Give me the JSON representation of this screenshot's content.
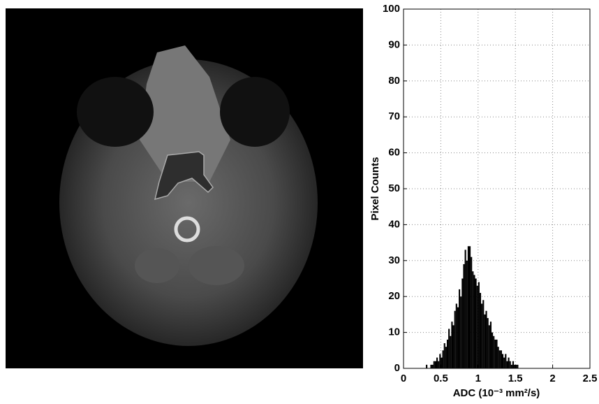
{
  "chart_data": {
    "type": "histogram",
    "xlabel": "ADC (10⁻³ mm²/s)",
    "ylabel": "Pixel Counts",
    "bins": [
      0.3,
      0.32,
      0.34,
      0.36,
      0.38,
      0.4,
      0.42,
      0.44,
      0.46,
      0.48,
      0.5,
      0.52,
      0.54,
      0.56,
      0.58,
      0.6,
      0.62,
      0.64,
      0.66,
      0.68,
      0.7,
      0.72,
      0.74,
      0.76,
      0.78,
      0.8,
      0.82,
      0.84,
      0.86,
      0.88,
      0.9,
      0.92,
      0.94,
      0.96,
      0.98,
      1.0,
      1.02,
      1.04,
      1.06,
      1.08,
      1.1,
      1.12,
      1.14,
      1.16,
      1.18,
      1.2,
      1.22,
      1.24,
      1.26,
      1.28,
      1.3,
      1.32,
      1.34,
      1.36,
      1.38,
      1.4,
      1.42,
      1.44,
      1.46,
      1.48,
      1.5,
      1.52,
      1.54
    ],
    "values": [
      1,
      0,
      0,
      1,
      1,
      2,
      2,
      3,
      2,
      4,
      3,
      5,
      7,
      6,
      8,
      11,
      9,
      13,
      12,
      16,
      18,
      17,
      22,
      20,
      25,
      29,
      33,
      30,
      34,
      34,
      31,
      27,
      26,
      25,
      23,
      24,
      21,
      18,
      19,
      15,
      16,
      14,
      12,
      13,
      10,
      9,
      8,
      8,
      6,
      5,
      5,
      4,
      3,
      4,
      2,
      3,
      2,
      1,
      2,
      1,
      1,
      1
    ],
    "color": "#000000",
    "xlim": [
      0,
      2.5
    ],
    "xticks": [
      0,
      0.5,
      1,
      1.5,
      2,
      2.5
    ],
    "ylim": [
      0,
      100
    ],
    "yticks": [
      0,
      10,
      20,
      30,
      40,
      50,
      60,
      70,
      80,
      90,
      100
    ],
    "grid": true
  }
}
